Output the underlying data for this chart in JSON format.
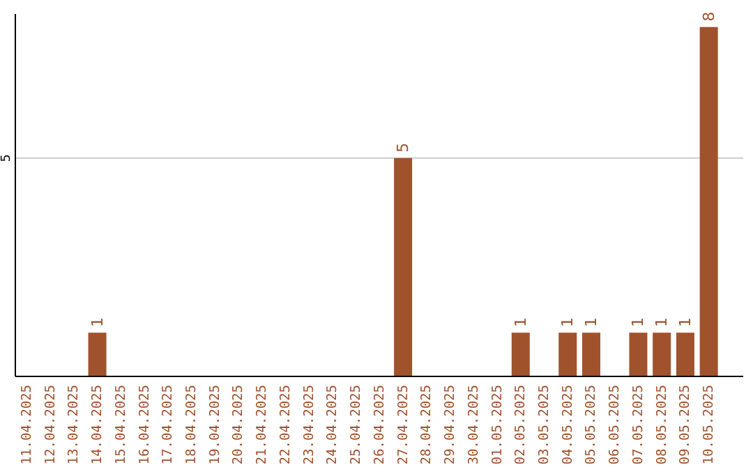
{
  "chart_data": {
    "type": "bar",
    "categories": [
      "11.04.2025",
      "12.04.2025",
      "13.04.2025",
      "14.04.2025",
      "15.04.2025",
      "16.04.2025",
      "17.04.2025",
      "18.04.2025",
      "19.04.2025",
      "20.04.2025",
      "21.04.2025",
      "22.04.2025",
      "23.04.2025",
      "24.04.2025",
      "25.04.2025",
      "26.04.2025",
      "27.04.2025",
      "28.04.2025",
      "29.04.2025",
      "30.04.2025",
      "01.05.2025",
      "02.05.2025",
      "03.05.2025",
      "04.05.2025",
      "05.05.2025",
      "06.05.2025",
      "07.05.2025",
      "08.05.2025",
      "09.05.2025",
      "10.05.2025"
    ],
    "values": [
      null,
      null,
      null,
      1,
      null,
      null,
      null,
      null,
      null,
      null,
      null,
      null,
      null,
      null,
      null,
      null,
      5,
      null,
      null,
      null,
      null,
      1,
      null,
      1,
      1,
      null,
      1,
      1,
      1,
      8
    ],
    "color": "#a0522d",
    "ylim": [
      0,
      8.3
    ],
    "yticks": [
      5
    ],
    "grid": "y",
    "data_labels": true
  }
}
